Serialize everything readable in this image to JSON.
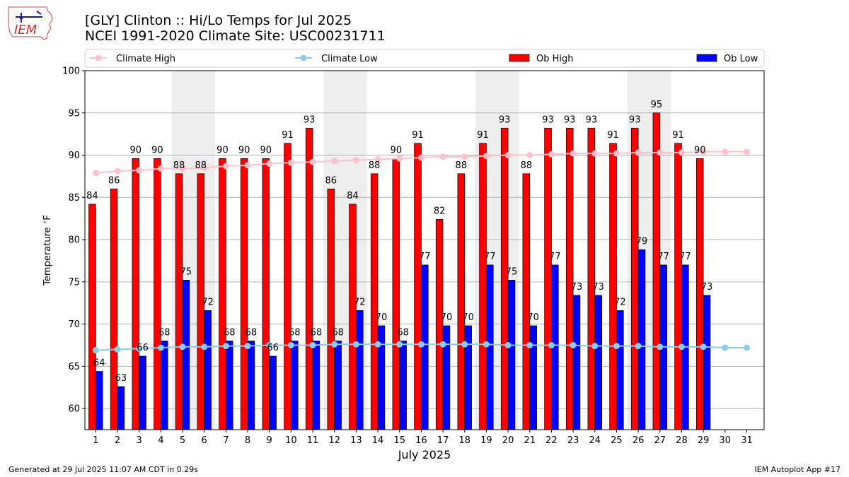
{
  "header": {
    "title_line1": "[GLY] Clinton :: Hi/Lo Temps for Jul 2025",
    "title_line2": "NCEI 1991-2020 Climate Site: USC00231711",
    "logo_text": "IEM"
  },
  "footer": {
    "generated": "Generated at 29 Jul 2025 11:07 AM CDT in 0.29s",
    "app": "IEM Autoplot App #17"
  },
  "colors": {
    "ob_high": "#ff0000",
    "ob_low": "#0000ff",
    "climate_high": "#ffc0cb",
    "climate_low": "#87ceeb",
    "weekend_shade": "#eeeeee",
    "grid": "#b0b0b0"
  },
  "chart_data": {
    "type": "bar",
    "xlabel": "July 2025",
    "ylabel": "Temperature $^\\circ$F",
    "ylim": [
      57.5,
      100
    ],
    "yticks": [
      60,
      65,
      70,
      75,
      80,
      85,
      90,
      95,
      100
    ],
    "grid": "horizontal",
    "legend_position": "top",
    "categories": [
      "1",
      "2",
      "3",
      "4",
      "5",
      "6",
      "7",
      "8",
      "9",
      "10",
      "11",
      "12",
      "13",
      "14",
      "15",
      "16",
      "17",
      "18",
      "19",
      "20",
      "21",
      "22",
      "23",
      "24",
      "25",
      "26",
      "27",
      "28",
      "29",
      "30",
      "31"
    ],
    "shaded_weekend_days": [
      [
        5,
        6
      ],
      [
        12,
        13
      ],
      [
        19,
        20
      ],
      [
        26,
        27
      ]
    ],
    "series": [
      {
        "name": "Ob High",
        "kind": "bar",
        "values": [
          84,
          86,
          90,
          90,
          88,
          88,
          90,
          90,
          90,
          91,
          93,
          86,
          84,
          88,
          90,
          91,
          82,
          88,
          91,
          93,
          88,
          93,
          93,
          93,
          91,
          93,
          95,
          91,
          90,
          null,
          null
        ],
        "bar_heights": [
          84.2,
          86.0,
          89.6,
          89.6,
          87.8,
          87.8,
          89.6,
          89.6,
          89.6,
          91.4,
          93.2,
          86.0,
          84.2,
          87.8,
          89.6,
          91.4,
          82.4,
          87.8,
          91.4,
          93.2,
          87.8,
          93.2,
          93.2,
          93.2,
          91.4,
          93.2,
          95.0,
          91.4,
          89.6,
          null,
          null
        ]
      },
      {
        "name": "Ob Low",
        "kind": "bar",
        "values": [
          64,
          63,
          66,
          68,
          75,
          72,
          68,
          68,
          66,
          68,
          68,
          68,
          72,
          70,
          68,
          77,
          70,
          70,
          77,
          75,
          70,
          77,
          73,
          73,
          72,
          79,
          77,
          77,
          73,
          null,
          null
        ],
        "bar_heights": [
          64.4,
          62.6,
          66.2,
          68.0,
          75.2,
          71.6,
          68.0,
          68.0,
          66.2,
          68.0,
          68.0,
          68.0,
          71.6,
          69.8,
          68.0,
          77.0,
          69.8,
          69.8,
          77.0,
          75.2,
          69.8,
          77.0,
          73.4,
          73.4,
          71.6,
          78.8,
          77.0,
          77.0,
          73.4,
          null,
          null
        ]
      },
      {
        "name": "Climate High",
        "kind": "line",
        "values": [
          87.9,
          88.1,
          88.2,
          88.4,
          88.4,
          88.5,
          88.7,
          88.8,
          89.0,
          89.1,
          89.2,
          89.3,
          89.4,
          89.5,
          89.6,
          89.7,
          89.8,
          89.8,
          89.9,
          90.0,
          90.0,
          90.1,
          90.2,
          90.2,
          90.2,
          90.3,
          90.3,
          90.3,
          90.4,
          90.4,
          90.4
        ]
      },
      {
        "name": "Climate Low",
        "kind": "line",
        "values": [
          66.9,
          67.0,
          67.1,
          67.2,
          67.3,
          67.3,
          67.4,
          67.4,
          67.5,
          67.5,
          67.5,
          67.6,
          67.6,
          67.6,
          67.6,
          67.6,
          67.6,
          67.6,
          67.6,
          67.5,
          67.5,
          67.5,
          67.5,
          67.4,
          67.4,
          67.4,
          67.3,
          67.3,
          67.3,
          67.2,
          67.2
        ]
      }
    ]
  }
}
